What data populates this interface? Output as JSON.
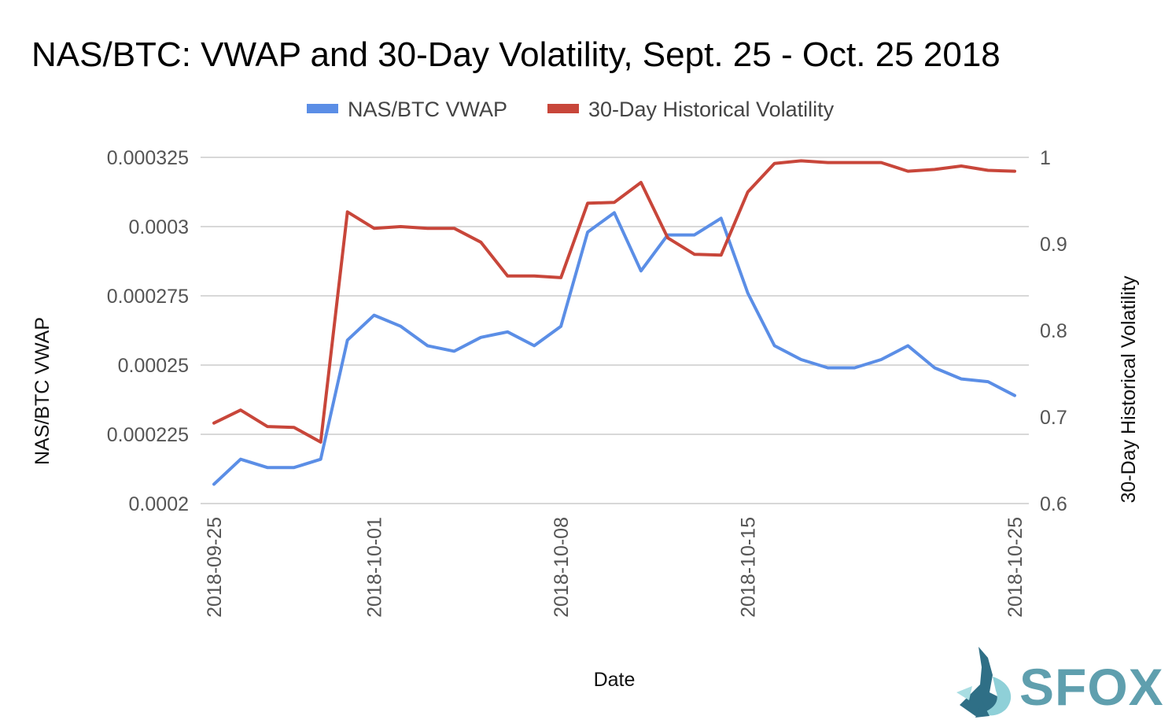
{
  "chart_data": {
    "type": "line",
    "title": "NAS/BTC: VWAP and 30-Day Volatility, Sept. 25 - Oct. 25 2018",
    "xlabel": "Date",
    "ylabel_left": "NAS/BTC VWAP",
    "ylabel_right": "30-Day Historical Volatility",
    "legend_position": "top",
    "x_tick_labels": [
      "2018-09-25",
      "2018-10-01",
      "2018-10-08",
      "2018-10-15",
      "2018-10-25"
    ],
    "x": [
      "2018-09-25",
      "2018-09-26",
      "2018-09-27",
      "2018-09-28",
      "2018-09-29",
      "2018-09-30",
      "2018-10-01",
      "2018-10-02",
      "2018-10-03",
      "2018-10-04",
      "2018-10-05",
      "2018-10-06",
      "2018-10-07",
      "2018-10-08",
      "2018-10-09",
      "2018-10-10",
      "2018-10-11",
      "2018-10-12",
      "2018-10-13",
      "2018-10-14",
      "2018-10-15",
      "2018-10-16",
      "2018-10-17",
      "2018-10-18",
      "2018-10-19",
      "2018-10-20",
      "2018-10-21",
      "2018-10-22",
      "2018-10-23",
      "2018-10-24",
      "2018-10-25"
    ],
    "y_left_ticks": [
      "0.0002",
      "0.000225",
      "0.00025",
      "0.000275",
      "0.0003",
      "0.000325"
    ],
    "y_left_lim": [
      0.0002,
      0.000325
    ],
    "y_right_ticks": [
      "0.6",
      "0.7",
      "0.8",
      "0.9",
      "1"
    ],
    "y_right_lim": [
      0.6,
      1.0
    ],
    "grid": true,
    "series": [
      {
        "name": "NAS/BTC VWAP",
        "axis": "left",
        "color": "#5b8ee6",
        "values": [
          0.000207,
          0.000216,
          0.000213,
          0.000213,
          0.000216,
          0.000259,
          0.000268,
          0.000264,
          0.000257,
          0.000255,
          0.00026,
          0.000262,
          0.000257,
          0.000264,
          0.000298,
          0.000305,
          0.000284,
          0.000297,
          0.000297,
          0.000303,
          0.000276,
          0.000257,
          0.000252,
          0.000249,
          0.000249,
          0.000252,
          0.000257,
          0.000249,
          0.000245,
          0.000244,
          0.000239
        ]
      },
      {
        "name": "30-Day Historical Volatility",
        "axis": "right",
        "color": "#c8463a",
        "values": [
          0.693,
          0.708,
          0.689,
          0.688,
          0.671,
          0.937,
          0.918,
          0.92,
          0.918,
          0.918,
          0.902,
          0.863,
          0.863,
          0.861,
          0.947,
          0.948,
          0.971,
          0.907,
          0.888,
          0.887,
          0.96,
          0.993,
          0.996,
          0.994,
          0.994,
          0.994,
          0.984,
          0.986,
          0.99,
          0.985,
          0.984
        ]
      }
    ]
  },
  "logo": {
    "text": "SFOX"
  }
}
